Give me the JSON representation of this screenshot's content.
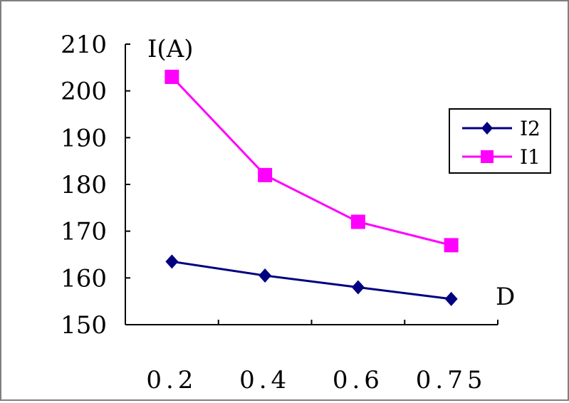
{
  "chart_data": {
    "type": "line",
    "title": "",
    "ylabel": "I(A)",
    "xlabel": "D",
    "categories": [
      "0.2",
      "0.4",
      "0.6",
      "0.75"
    ],
    "ylim": [
      150,
      210
    ],
    "yticks": [
      "150",
      "160",
      "170",
      "180",
      "190",
      "200",
      "210"
    ],
    "grid": false,
    "legend_position": "right",
    "series": [
      {
        "name": "I2",
        "values": [
          163.5,
          160.5,
          158,
          155.5
        ],
        "color": "#000080",
        "marker": "diamond"
      },
      {
        "name": "I1",
        "values": [
          203,
          182,
          172,
          167
        ],
        "color": "#ff00ff",
        "marker": "square"
      }
    ]
  }
}
